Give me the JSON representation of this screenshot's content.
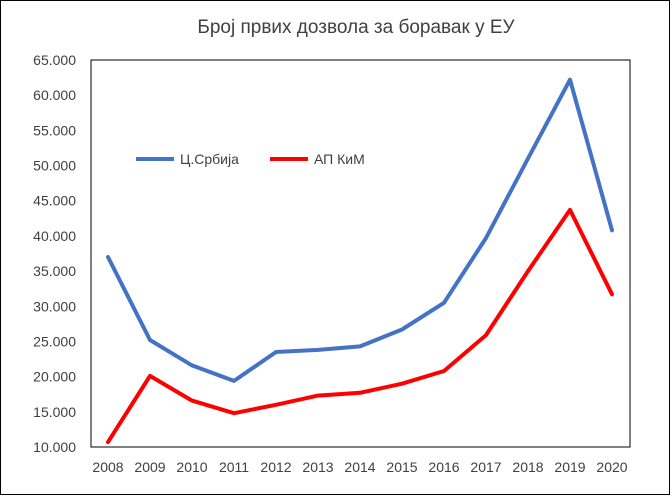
{
  "chart_data": {
    "type": "line",
    "title": "Број првих дозвола за боравак у ЕУ",
    "xlabel": "",
    "ylabel": "",
    "categories": [
      "2008",
      "2009",
      "2010",
      "2011",
      "2012",
      "2013",
      "2014",
      "2015",
      "2016",
      "2017",
      "2018",
      "2019",
      "2020"
    ],
    "ylim": [
      10000,
      65000
    ],
    "yticks": [
      10000,
      15000,
      20000,
      25000,
      30000,
      35000,
      40000,
      45000,
      50000,
      55000,
      60000,
      65000
    ],
    "ytick_labels": [
      "10.000",
      "15.000",
      "20.000",
      "25.000",
      "30.000",
      "35.000",
      "40.000",
      "45.000",
      "50.000",
      "55.000",
      "60.000",
      "65.000"
    ],
    "grid": false,
    "legend_position": "upper-left inside plot",
    "series": [
      {
        "name": "Ц.Србија",
        "color": "#4472C4",
        "values": [
          37000,
          25200,
          21600,
          19400,
          23500,
          23800,
          24300,
          26700,
          30500,
          39700,
          51000,
          62200,
          40800
        ]
      },
      {
        "name": "АП КиМ",
        "color": "#FF0000",
        "values": [
          10700,
          20100,
          16600,
          14800,
          16000,
          17300,
          17700,
          19000,
          20800,
          25900,
          35000,
          43700,
          31700
        ]
      }
    ]
  }
}
